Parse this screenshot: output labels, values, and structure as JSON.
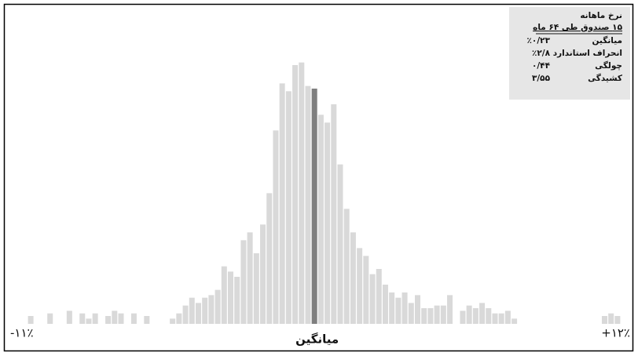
{
  "chart_data": {
    "type": "histogram",
    "bins": [
      -11,
      -10.75,
      -10.5,
      -10.25,
      -10,
      -9.75,
      -9.5,
      -9.25,
      -9,
      -8.75,
      -8.5,
      -8.25,
      -8,
      -7.75,
      -7.5,
      -7.25,
      -7,
      -6.75,
      -6.5,
      -6.25,
      -6,
      -5.75,
      -5.5,
      -5.25,
      -5,
      -4.75,
      -4.5,
      -4.25,
      -4,
      -3.75,
      -3.5,
      -3.25,
      -3,
      -2.75,
      -2.5,
      -2.25,
      -2,
      -1.75,
      -1.5,
      -1.25,
      -1,
      -0.75,
      -0.5,
      -0.25,
      0,
      0.25,
      0.5,
      0.75,
      1,
      1.25,
      1.5,
      1.75,
      2,
      2.25,
      2.5,
      2.75,
      3,
      3.25,
      3.5,
      3.75,
      4,
      4.25,
      4.5,
      4.75,
      5,
      5.25,
      5.5,
      5.75,
      6,
      6.25,
      6.5,
      6.75,
      7,
      7.25,
      7.5,
      7.75,
      8,
      8.25,
      8.5,
      8.75,
      9,
      9.25,
      9.5,
      9.75,
      10,
      10.25,
      10.5,
      10.75,
      11,
      11.25,
      11.5,
      11.75,
      12
    ],
    "values": [
      3,
      0,
      0,
      4,
      0,
      0,
      5,
      0,
      4,
      2,
      4,
      0,
      3,
      5,
      4,
      0,
      4,
      0,
      3,
      0,
      0,
      0,
      2,
      4,
      7,
      10,
      8,
      10,
      11,
      13,
      22,
      20,
      18,
      32,
      35,
      27,
      38,
      50,
      74,
      92,
      89,
      99,
      100,
      91,
      90,
      80,
      77,
      84,
      61,
      44,
      35,
      29,
      26,
      19,
      21,
      15,
      12,
      10,
      12,
      8,
      11,
      6,
      6,
      7,
      7,
      11,
      0,
      5,
      7,
      6,
      8,
      6,
      4,
      4,
      5,
      2,
      0,
      0,
      0,
      0,
      0,
      0,
      0,
      0,
      0,
      0,
      0,
      0,
      0,
      3,
      4,
      3
    ],
    "color": "#d9d9d9",
    "mean": {
      "value": 0.23,
      "label": "٪۰/۲۳"
    },
    "mean_color": "#7f7f7f",
    "mean_label": "میانگین",
    "xlim": [
      -11,
      12
    ],
    "ylim": [
      0,
      105
    ],
    "xticks": [
      {
        "value": -11,
        "label": "-۱۱٪"
      },
      {
        "value": 12,
        "label": "+۱۲٪"
      }
    ],
    "stats_box": {
      "title": "نرخ ماهانه",
      "subtitle": "۱۵ صندوق طی ۶۴ ماه",
      "mean_row": "میانگین",
      "rows": [
        {
          "label": "انحراف استاندارد",
          "value": "٪۲/۸"
        },
        {
          "label": "چولگی",
          "value": "۰/۴۴"
        },
        {
          "label": "کشیدگی",
          "value": "۳/۵۵"
        }
      ]
    }
  }
}
